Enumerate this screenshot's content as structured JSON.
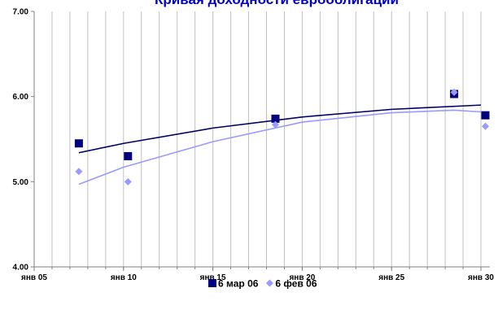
{
  "chart_data": {
    "type": "scatter",
    "title": "Кривая доходности еврооблигаций",
    "xlabel": "",
    "ylabel": "",
    "xlim": [
      2005,
      2030.5
    ],
    "ylim": [
      4.0,
      7.0
    ],
    "x_ticks": [
      2005,
      2010,
      2015,
      2020,
      2025,
      2030
    ],
    "x_tick_labels": [
      "янв 05",
      "янв 10",
      "янв 15",
      "янв 20",
      "янв 25",
      "янв 30"
    ],
    "y_ticks": [
      4.0,
      5.0,
      6.0,
      7.0
    ],
    "y_tick_labels": [
      "4.00",
      "5.00",
      "6.00",
      "7.00"
    ],
    "grid": {
      "vertical": true,
      "vertical_step": 1,
      "horizontal": false
    },
    "legend_position": "bottom",
    "series": [
      {
        "name": "6 мар 06",
        "marker": "square",
        "color": "#000080",
        "trend_color": "#000066",
        "points": [
          {
            "x": 2007.5,
            "y": 5.45
          },
          {
            "x": 2010.25,
            "y": 5.3
          },
          {
            "x": 2018.5,
            "y": 5.74
          },
          {
            "x": 2028.5,
            "y": 6.03
          },
          {
            "x": 2030.25,
            "y": 5.78
          }
        ],
        "trendline": [
          {
            "x": 2007.5,
            "y": 5.34
          },
          {
            "x": 2010,
            "y": 5.45
          },
          {
            "x": 2015,
            "y": 5.63
          },
          {
            "x": 2020,
            "y": 5.76
          },
          {
            "x": 2025,
            "y": 5.85
          },
          {
            "x": 2030,
            "y": 5.9
          }
        ]
      },
      {
        "name": "6 фев 06",
        "marker": "diamond",
        "color": "#9999ff",
        "trend_color": "#9999ff",
        "points": [
          {
            "x": 2007.5,
            "y": 5.12
          },
          {
            "x": 2010.25,
            "y": 5.0
          },
          {
            "x": 2018.5,
            "y": 5.67
          },
          {
            "x": 2028.5,
            "y": 6.05
          },
          {
            "x": 2030.25,
            "y": 5.65
          }
        ],
        "trendline": [
          {
            "x": 2007.5,
            "y": 4.97
          },
          {
            "x": 2010,
            "y": 5.17
          },
          {
            "x": 2015,
            "y": 5.47
          },
          {
            "x": 2020,
            "y": 5.7
          },
          {
            "x": 2025,
            "y": 5.81
          },
          {
            "x": 2028.5,
            "y": 5.84
          },
          {
            "x": 2030,
            "y": 5.82
          }
        ]
      }
    ]
  }
}
